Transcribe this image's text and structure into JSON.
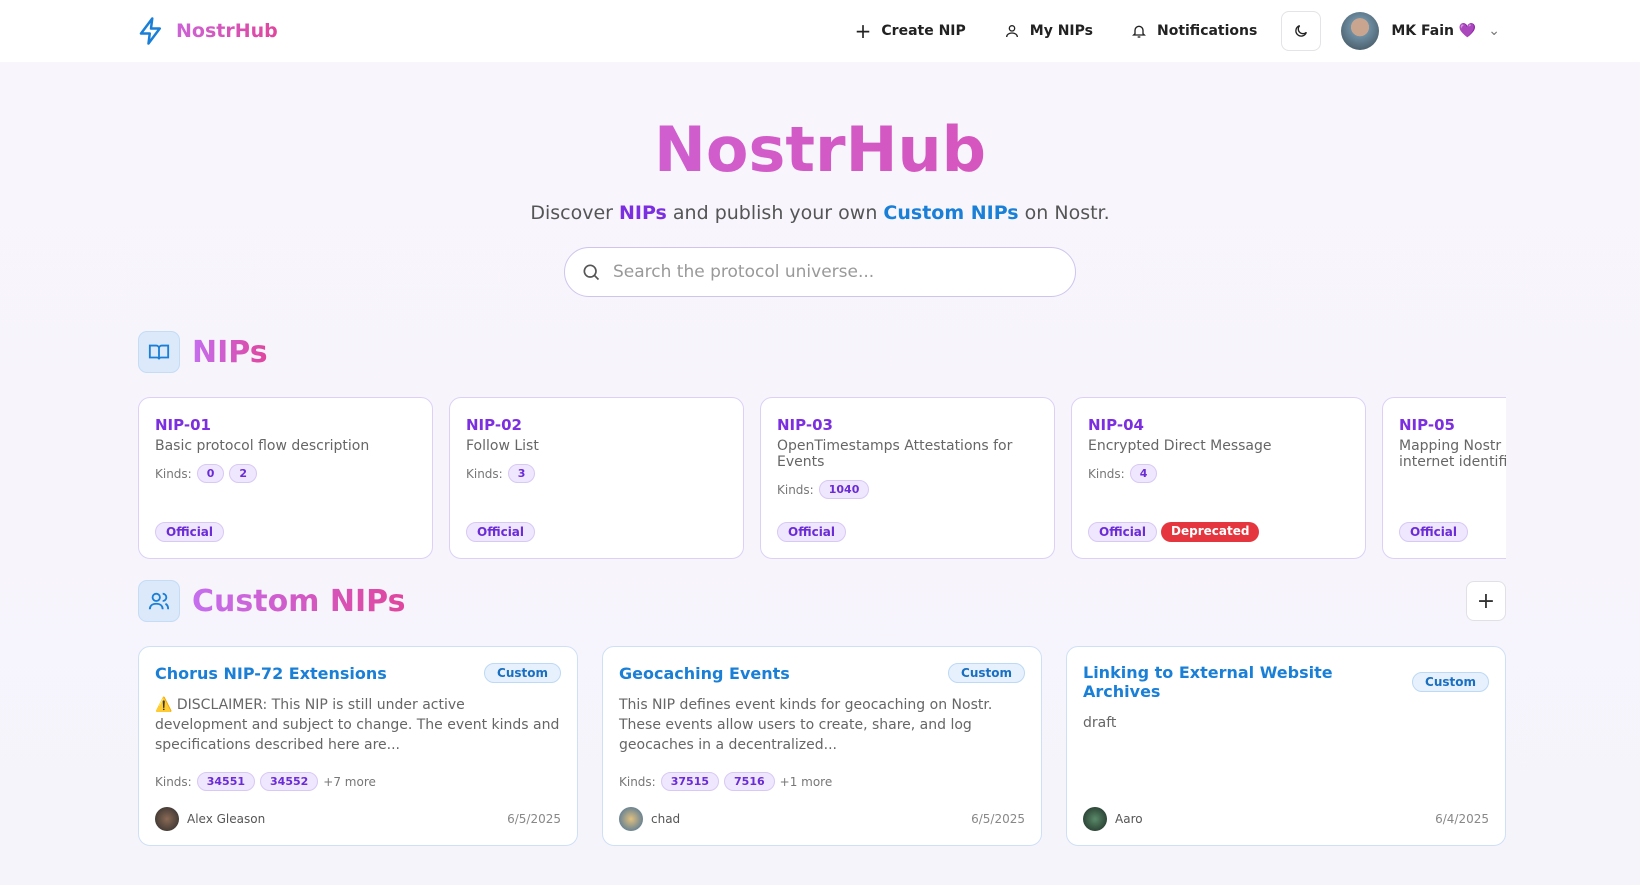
{
  "nav": {
    "brand": "NostrHub",
    "create": "Create NIP",
    "my": "My NIPs",
    "notifications": "Notifications",
    "user": "MK Fain 💜"
  },
  "hero": {
    "title": "NostrHub",
    "pre": "Discover ",
    "nips": "NIPs",
    "mid": " and publish your own ",
    "custom": "Custom NIPs",
    "post": " on Nostr.",
    "search_placeholder": "Search the protocol universe..."
  },
  "nips": {
    "title": "NIPs",
    "kinds_label": "Kinds:",
    "items": [
      {
        "id": "NIP-01",
        "desc": "Basic protocol flow description",
        "kinds": [
          "0",
          "2"
        ],
        "badges": [
          "Official"
        ]
      },
      {
        "id": "NIP-02",
        "desc": "Follow List",
        "kinds": [
          "3"
        ],
        "badges": [
          "Official"
        ]
      },
      {
        "id": "NIP-03",
        "desc": "OpenTimestamps Attestations for Events",
        "kinds": [
          "1040"
        ],
        "badges": [
          "Official"
        ]
      },
      {
        "id": "NIP-04",
        "desc": "Encrypted Direct Message",
        "kinds": [
          "4"
        ],
        "badges": [
          "Official",
          "Deprecated"
        ]
      },
      {
        "id": "NIP-05",
        "desc": "Mapping Nostr keys to DNS-based internet identifiers",
        "kinds": [],
        "badges": [
          "Official"
        ]
      }
    ]
  },
  "custom": {
    "title": "Custom NIPs",
    "kinds_label": "Kinds:",
    "items": [
      {
        "title": "Chorus NIP-72 Extensions",
        "badge": "Custom",
        "desc": "⚠️ DISCLAIMER: This NIP is still under active development and subject to change. The event kinds and specifications described here are...",
        "kinds": [
          "34551",
          "34552"
        ],
        "more": "+7 more",
        "author": "Alex Gleason",
        "date": "6/5/2025"
      },
      {
        "title": "Geocaching Events",
        "badge": "Custom",
        "desc": "This NIP defines event kinds for geocaching on Nostr. These events allow users to create, share, and log geocaches in a decentralized...",
        "kinds": [
          "37515",
          "7516"
        ],
        "more": "+1 more",
        "author": "chad",
        "date": "6/5/2025"
      },
      {
        "title": "Linking to External Website Archives",
        "badge": "Custom",
        "desc": "draft",
        "kinds": [],
        "more": "",
        "author": "Aaro",
        "date": "6/4/2025"
      }
    ]
  },
  "colors": {
    "accent_purple": "#7c2fe0",
    "accent_blue": "#1a7fd6",
    "deprecated": "#e5363f"
  }
}
